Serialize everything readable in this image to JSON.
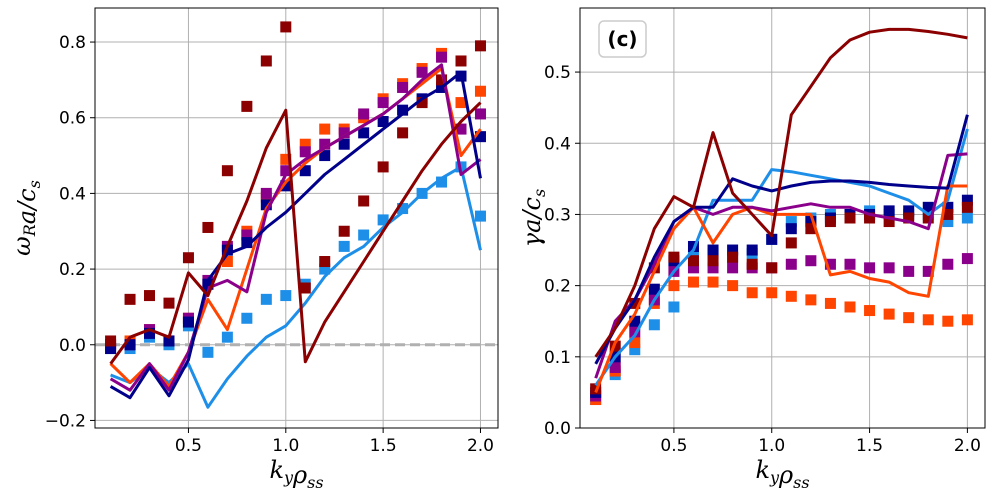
{
  "chart_data": [
    {
      "type": "line",
      "panel_label": "",
      "xlabel": "k_y ρ_ss",
      "ylabel": "ω_R a / c_s",
      "xlim": [
        0.02,
        2.09
      ],
      "ylim": [
        -0.22,
        0.89
      ],
      "xticks": [
        "0.5",
        "1.0",
        "1.5",
        "2.0"
      ],
      "xtick_values": [
        0.5,
        1.0,
        1.5,
        2.0
      ],
      "yticks": [
        "−0.2",
        "0.0",
        "0.2",
        "0.4",
        "0.6",
        "0.8"
      ],
      "ytick_values": [
        -0.2,
        0.0,
        0.2,
        0.4,
        0.6,
        0.8
      ],
      "grid": true,
      "hline": {
        "y": 0.0,
        "color": "#b0b0b0",
        "style": "dashed"
      },
      "series": [
        {
          "kind": "line",
          "color": "#1E8FE8",
          "x": [
            0.1,
            0.2,
            0.3,
            0.4,
            0.5,
            0.6,
            0.7,
            0.8,
            0.9,
            1.0,
            1.1,
            1.2,
            1.3,
            1.4,
            1.5,
            1.6,
            1.7,
            1.8,
            1.9,
            2.0
          ],
          "y": [
            -0.08,
            -0.1,
            -0.06,
            -0.1,
            -0.05,
            -0.165,
            -0.09,
            -0.03,
            0.02,
            0.05,
            0.11,
            0.18,
            0.23,
            0.26,
            0.31,
            0.35,
            0.4,
            0.44,
            0.47,
            0.25
          ]
        },
        {
          "kind": "line",
          "color": "#FF4500",
          "x": [
            0.1,
            0.2,
            0.3,
            0.4,
            0.5,
            0.6,
            0.7,
            0.8,
            0.9,
            1.0,
            1.1,
            1.2,
            1.3,
            1.4,
            1.5,
            1.6,
            1.7,
            1.8,
            1.9,
            2.0
          ],
          "y": [
            -0.05,
            -0.1,
            -0.05,
            -0.11,
            -0.02,
            0.12,
            0.04,
            0.2,
            0.36,
            0.43,
            0.48,
            0.52,
            0.55,
            0.58,
            0.61,
            0.65,
            0.69,
            0.73,
            0.5,
            0.57
          ]
        },
        {
          "kind": "line",
          "color": "#8B008B",
          "x": [
            0.1,
            0.2,
            0.3,
            0.4,
            0.5,
            0.6,
            0.7,
            0.8,
            0.9,
            1.0,
            1.1,
            1.2,
            1.3,
            1.4,
            1.5,
            1.6,
            1.7,
            1.8,
            1.9,
            2.0
          ],
          "y": [
            -0.09,
            -0.12,
            -0.05,
            -0.12,
            -0.02,
            0.15,
            0.17,
            0.14,
            0.35,
            0.45,
            0.49,
            0.52,
            0.55,
            0.58,
            0.61,
            0.65,
            0.7,
            0.74,
            0.45,
            0.49
          ]
        },
        {
          "kind": "line",
          "color": "#00008B",
          "x": [
            0.1,
            0.2,
            0.3,
            0.4,
            0.5,
            0.6,
            0.7,
            0.8,
            0.9,
            1.0,
            1.1,
            1.2,
            1.3,
            1.4,
            1.5,
            1.6,
            1.7,
            1.8,
            1.9,
            2.0
          ],
          "y": [
            -0.11,
            -0.14,
            -0.06,
            -0.135,
            -0.04,
            0.17,
            0.24,
            0.26,
            0.31,
            0.35,
            0.4,
            0.45,
            0.49,
            0.53,
            0.57,
            0.61,
            0.65,
            0.68,
            0.72,
            0.44
          ]
        },
        {
          "kind": "line",
          "color": "#8B0000",
          "x": [
            0.1,
            0.2,
            0.3,
            0.4,
            0.5,
            0.6,
            0.7,
            0.8,
            0.9,
            1.0,
            1.1,
            1.2,
            1.3,
            1.4,
            1.5,
            1.6,
            1.7,
            1.8,
            1.9,
            2.0
          ],
          "y": [
            -0.05,
            0.02,
            0.04,
            0.02,
            0.19,
            0.13,
            0.26,
            0.38,
            0.52,
            0.62,
            -0.045,
            0.06,
            0.14,
            0.22,
            0.3,
            0.38,
            0.46,
            0.53,
            0.59,
            0.64
          ]
        },
        {
          "kind": "markers",
          "color": "#1E8FE8",
          "x": [
            0.1,
            0.2,
            0.3,
            0.4,
            0.5,
            0.6,
            0.7,
            0.8,
            0.9,
            1.0,
            1.1,
            1.2,
            1.3,
            1.4,
            1.5,
            1.6,
            1.7,
            1.8,
            1.9,
            2.0
          ],
          "y": [
            -0.01,
            -0.01,
            0.02,
            0.0,
            0.05,
            -0.02,
            0.02,
            0.07,
            0.12,
            0.13,
            0.16,
            0.2,
            0.26,
            0.29,
            0.33,
            0.36,
            0.4,
            0.43,
            0.47,
            0.34
          ]
        },
        {
          "kind": "markers",
          "color": "#FF4500",
          "x": [
            0.1,
            0.2,
            0.3,
            0.4,
            0.5,
            0.6,
            0.7,
            0.8,
            0.9,
            1.0,
            1.1,
            1.2,
            1.3,
            1.4,
            1.5,
            1.6,
            1.7,
            1.8,
            1.9,
            2.0
          ],
          "y": [
            0.0,
            0.01,
            0.04,
            0.01,
            0.07,
            0.16,
            0.22,
            0.3,
            0.39,
            0.49,
            0.53,
            0.57,
            0.57,
            0.6,
            0.65,
            0.69,
            0.73,
            0.77,
            0.64,
            0.67
          ]
        },
        {
          "kind": "markers",
          "color": "#8B008B",
          "x": [
            0.1,
            0.2,
            0.3,
            0.4,
            0.5,
            0.6,
            0.7,
            0.8,
            0.9,
            1.0,
            1.1,
            1.2,
            1.3,
            1.4,
            1.5,
            1.6,
            1.7,
            1.8,
            1.9,
            2.0
          ],
          "y": [
            0.0,
            0.0,
            0.04,
            0.01,
            0.07,
            0.17,
            0.26,
            0.29,
            0.4,
            0.46,
            0.51,
            0.53,
            0.56,
            0.61,
            0.64,
            0.68,
            0.72,
            0.76,
            0.57,
            0.61
          ]
        },
        {
          "kind": "markers",
          "color": "#00008B",
          "x": [
            0.1,
            0.2,
            0.3,
            0.4,
            0.5,
            0.6,
            0.7,
            0.8,
            0.9,
            1.0,
            1.1,
            1.2,
            1.3,
            1.4,
            1.5,
            1.6,
            1.7,
            1.8,
            1.9,
            2.0
          ],
          "y": [
            -0.01,
            0.0,
            0.03,
            0.01,
            0.06,
            0.16,
            0.25,
            0.27,
            0.37,
            0.42,
            0.46,
            0.5,
            0.53,
            0.56,
            0.59,
            0.62,
            0.65,
            0.68,
            0.71,
            0.55
          ]
        },
        {
          "kind": "markers",
          "color": "#8B0000",
          "x": [
            0.1,
            0.2,
            0.3,
            0.4,
            0.5,
            0.6,
            0.7,
            0.8,
            0.9,
            1.0,
            1.1,
            1.2,
            1.3,
            1.4,
            1.5,
            1.6,
            1.7,
            1.8,
            1.9,
            2.0
          ],
          "y": [
            0.01,
            0.12,
            0.13,
            0.11,
            0.23,
            0.31,
            0.46,
            0.63,
            0.75,
            0.84,
            0.15,
            0.22,
            0.3,
            0.38,
            0.47,
            0.56,
            0.64,
            0.7,
            0.75,
            0.79
          ]
        }
      ]
    },
    {
      "type": "line",
      "panel_label": "(c)",
      "xlabel": "k_y ρ_ss",
      "ylabel": "γ a / c_s",
      "xlim": [
        0.02,
        2.09
      ],
      "ylim": [
        0.0,
        0.59
      ],
      "xticks": [
        "0.5",
        "1.0",
        "1.5",
        "2.0"
      ],
      "xtick_values": [
        0.5,
        1.0,
        1.5,
        2.0
      ],
      "yticks": [
        "0.0",
        "0.1",
        "0.2",
        "0.3",
        "0.4",
        "0.5"
      ],
      "ytick_values": [
        0.0,
        0.1,
        0.2,
        0.3,
        0.4,
        0.5
      ],
      "grid": true,
      "series": [
        {
          "kind": "line",
          "color": "#1E8FE8",
          "x": [
            0.1,
            0.2,
            0.3,
            0.4,
            0.5,
            0.6,
            0.7,
            0.8,
            0.9,
            1.0,
            1.1,
            1.2,
            1.3,
            1.4,
            1.5,
            1.6,
            1.7,
            1.8,
            1.9,
            2.0
          ],
          "y": [
            0.06,
            0.1,
            0.13,
            0.18,
            0.22,
            0.25,
            0.32,
            0.32,
            0.32,
            0.363,
            0.36,
            0.355,
            0.35,
            0.345,
            0.34,
            0.33,
            0.32,
            0.3,
            0.32,
            0.42
          ]
        },
        {
          "kind": "line",
          "color": "#FF4500",
          "x": [
            0.1,
            0.2,
            0.3,
            0.4,
            0.5,
            0.6,
            0.7,
            0.8,
            0.9,
            1.0,
            1.1,
            1.2,
            1.3,
            1.4,
            1.5,
            1.6,
            1.7,
            1.8,
            1.9,
            2.0
          ],
          "y": [
            0.05,
            0.12,
            0.16,
            0.22,
            0.28,
            0.31,
            0.26,
            0.3,
            0.31,
            0.3,
            0.3,
            0.3,
            0.215,
            0.22,
            0.21,
            0.205,
            0.19,
            0.185,
            0.34,
            0.34
          ]
        },
        {
          "kind": "line",
          "color": "#8B008B",
          "x": [
            0.1,
            0.2,
            0.3,
            0.4,
            0.5,
            0.6,
            0.7,
            0.8,
            0.9,
            1.0,
            1.1,
            1.2,
            1.3,
            1.4,
            1.5,
            1.6,
            1.7,
            1.8,
            1.9,
            2.0
          ],
          "y": [
            0.07,
            0.15,
            0.18,
            0.23,
            0.29,
            0.31,
            0.3,
            0.31,
            0.31,
            0.305,
            0.31,
            0.315,
            0.31,
            0.31,
            0.3,
            0.295,
            0.29,
            0.28,
            0.383,
            0.385
          ]
        },
        {
          "kind": "line",
          "color": "#00008B",
          "x": [
            0.1,
            0.2,
            0.3,
            0.4,
            0.5,
            0.6,
            0.7,
            0.8,
            0.9,
            1.0,
            1.1,
            1.2,
            1.3,
            1.4,
            1.5,
            1.6,
            1.7,
            1.8,
            1.9,
            2.0
          ],
          "y": [
            0.09,
            0.14,
            0.18,
            0.24,
            0.29,
            0.31,
            0.31,
            0.35,
            0.34,
            0.333,
            0.34,
            0.345,
            0.347,
            0.347,
            0.345,
            0.342,
            0.34,
            0.338,
            0.337,
            0.44
          ]
        },
        {
          "kind": "line",
          "color": "#8B0000",
          "x": [
            0.1,
            0.2,
            0.3,
            0.4,
            0.5,
            0.6,
            0.7,
            0.8,
            0.9,
            1.0,
            1.1,
            1.2,
            1.3,
            1.4,
            1.5,
            1.6,
            1.7,
            1.8,
            1.9,
            2.0
          ],
          "y": [
            0.1,
            0.14,
            0.2,
            0.28,
            0.325,
            0.31,
            0.415,
            0.33,
            0.3,
            0.27,
            0.44,
            0.48,
            0.52,
            0.545,
            0.556,
            0.56,
            0.56,
            0.557,
            0.553,
            0.548
          ]
        },
        {
          "kind": "markers",
          "color": "#1E8FE8",
          "x": [
            0.1,
            0.2,
            0.3,
            0.4,
            0.5,
            0.6,
            0.7,
            0.8,
            0.9,
            1.0,
            1.1,
            1.2,
            1.3,
            1.4,
            1.5,
            1.6,
            1.7,
            1.8,
            1.9,
            2.0
          ],
          "y": [
            0.04,
            0.075,
            0.11,
            0.145,
            0.17,
            0.245,
            0.245,
            0.24,
            0.245,
            0.265,
            0.29,
            0.295,
            0.3,
            0.3,
            0.305,
            0.3,
            0.3,
            0.3,
            0.29,
            0.295
          ]
        },
        {
          "kind": "markers",
          "color": "#FF4500",
          "x": [
            0.1,
            0.2,
            0.3,
            0.4,
            0.5,
            0.6,
            0.7,
            0.8,
            0.9,
            1.0,
            1.1,
            1.2,
            1.3,
            1.4,
            1.5,
            1.6,
            1.7,
            1.8,
            1.9,
            2.0
          ],
          "y": [
            0.04,
            0.08,
            0.12,
            0.175,
            0.2,
            0.205,
            0.205,
            0.2,
            0.19,
            0.19,
            0.185,
            0.18,
            0.175,
            0.17,
            0.165,
            0.16,
            0.155,
            0.152,
            0.15,
            0.152
          ]
        },
        {
          "kind": "markers",
          "color": "#8B008B",
          "x": [
            0.1,
            0.2,
            0.3,
            0.4,
            0.5,
            0.6,
            0.7,
            0.8,
            0.9,
            1.0,
            1.1,
            1.2,
            1.3,
            1.4,
            1.5,
            1.6,
            1.7,
            1.8,
            1.9,
            2.0
          ],
          "y": [
            0.045,
            0.085,
            0.135,
            0.18,
            0.22,
            0.225,
            0.225,
            0.225,
            0.225,
            0.225,
            0.23,
            0.235,
            0.23,
            0.23,
            0.225,
            0.225,
            0.22,
            0.22,
            0.23,
            0.238
          ]
        },
        {
          "kind": "markers",
          "color": "#00008B",
          "x": [
            0.1,
            0.2,
            0.3,
            0.4,
            0.5,
            0.6,
            0.7,
            0.8,
            0.9,
            1.0,
            1.1,
            1.2,
            1.3,
            1.4,
            1.5,
            1.6,
            1.7,
            1.8,
            1.9,
            2.0
          ],
          "y": [
            0.05,
            0.1,
            0.15,
            0.195,
            0.235,
            0.255,
            0.25,
            0.25,
            0.25,
            0.265,
            0.28,
            0.29,
            0.295,
            0.3,
            0.3,
            0.305,
            0.305,
            0.31,
            0.31,
            0.32
          ]
        },
        {
          "kind": "markers",
          "color": "#8B0000",
          "x": [
            0.1,
            0.2,
            0.3,
            0.4,
            0.5,
            0.6,
            0.7,
            0.8,
            0.9,
            1.0,
            1.1,
            1.2,
            1.3,
            1.4,
            1.5,
            1.6,
            1.7,
            1.8,
            1.9,
            2.0
          ],
          "y": [
            0.055,
            0.115,
            0.175,
            0.225,
            0.24,
            0.235,
            0.235,
            0.24,
            0.23,
            0.225,
            0.26,
            0.28,
            0.29,
            0.295,
            0.295,
            0.29,
            0.295,
            0.295,
            0.3,
            0.31
          ]
        }
      ]
    }
  ]
}
